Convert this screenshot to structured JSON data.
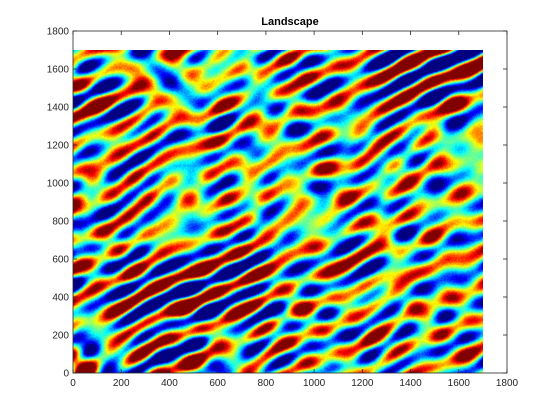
{
  "chart_data": {
    "type": "heatmap",
    "title": "Landscape",
    "xlabel": "",
    "ylabel": "",
    "xlim": [
      0,
      1800
    ],
    "ylim": [
      0,
      1800
    ],
    "x_ticks": [
      0,
      200,
      400,
      600,
      800,
      1000,
      1200,
      1400,
      1600,
      1800
    ],
    "y_ticks": [
      0,
      200,
      400,
      600,
      800,
      1000,
      1200,
      1400,
      1600,
      1800
    ],
    "data_extent": {
      "x": [
        0,
        1700
      ],
      "y": [
        0,
        1700
      ]
    },
    "grid": false,
    "colormap": "jet",
    "pattern": "diagonal banded ridges rising from lower-left to upper-right"
  },
  "colors": {
    "axis": "#262626",
    "background": "#ffffff"
  }
}
